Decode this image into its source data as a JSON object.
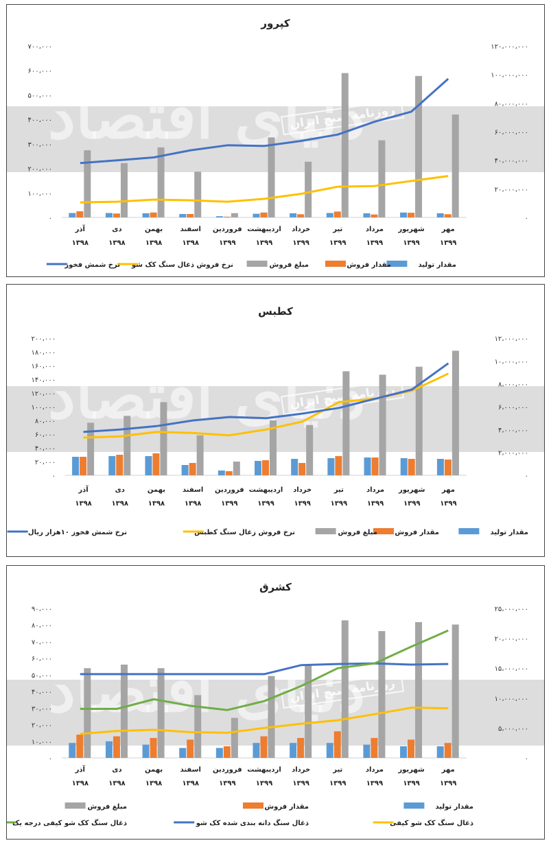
{
  "colors": {
    "production": "#5b9bd5",
    "sales_qty": "#ed7d31",
    "sales_amount": "#a5a5a5",
    "coal_price": "#ffc000",
    "ingot_price": "#4472c4",
    "grade1": "#70ad47"
  },
  "watermark": {
    "text": "روزنامه صبح ایران",
    "logo": "دنیای اقتصاد"
  },
  "chart_data": [
    {
      "type": "bar",
      "title": "کپرور",
      "categories": [
        "آذر ۱۳۹۸",
        "دی ۱۳۹۸",
        "بهمن ۱۳۹۸",
        "اسفند ۱۳۹۸",
        "فروردین ۱۳۹۹",
        "اردیبهشت ۱۳۹۹",
        "خرداد ۱۳۹۹",
        "تیر ۱۳۹۹",
        "مرداد ۱۳۹۹",
        "شهریور ۱۳۹۹",
        "مهر ۱۳۹۹"
      ],
      "y_left": {
        "ticks": [
          "۰",
          "۱۰۰،۰۰۰",
          "۲۰۰،۰۰۰",
          "۳۰۰،۰۰۰",
          "۴۰۰،۰۰۰",
          "۵۰۰،۰۰۰",
          "۶۰۰،۰۰۰",
          "۷۰۰،۰۰۰"
        ],
        "range": [
          0,
          700000
        ]
      },
      "y_right": {
        "ticks": [
          "۰",
          "۲۰،۰۰۰،۰۰۰",
          "۴۰،۰۰۰،۰۰۰",
          "۶۰،۰۰۰،۰۰۰",
          "۸۰،۰۰۰،۰۰۰",
          "۱۰۰،۰۰۰،۰۰۰",
          "۱۲۰،۰۰۰،۰۰۰"
        ],
        "range": [
          0,
          120000000
        ]
      },
      "series": [
        {
          "name": "مقدار تولید",
          "axis": "left",
          "kind": "bar",
          "color": "#5b9bd5",
          "values": [
            18000,
            18000,
            17000,
            14000,
            5000,
            15000,
            17000,
            18000,
            17000,
            20000,
            17000
          ]
        },
        {
          "name": "مقدار فروش",
          "axis": "left",
          "kind": "bar",
          "color": "#ed7d31",
          "values": [
            25000,
            16000,
            20000,
            14000,
            3000,
            20000,
            13000,
            24000,
            12000,
            19000,
            13000
          ]
        },
        {
          "name": "مبلغ فروش",
          "axis": "right",
          "kind": "bar",
          "color": "#a5a5a5",
          "values": [
            47000000,
            38000000,
            49000000,
            32000000,
            3000000,
            56000000,
            39000000,
            101000000,
            54000000,
            99000000,
            72000000
          ]
        },
        {
          "name": "نرخ فروش ذغال سنگ کک شو",
          "axis": "right",
          "kind": "line",
          "color": "#ffc000",
          "values": [
            10500000,
            11000000,
            12500000,
            12000000,
            11000000,
            13000000,
            16500000,
            21500000,
            22000000,
            25500000,
            29000000
          ]
        },
        {
          "name": "نرخ شمش فخوز",
          "axis": "right",
          "kind": "line",
          "color": "#4472c4",
          "values": [
            38000000,
            40000000,
            42000000,
            47000000,
            50500000,
            50000000,
            53500000,
            58000000,
            67000000,
            74000000,
            97000000
          ]
        }
      ]
    },
    {
      "type": "bar",
      "title": "کطبس",
      "categories": [
        "آذر ۱۳۹۸",
        "دی ۱۳۹۸",
        "بهمن ۱۳۹۸",
        "اسفند ۱۳۹۸",
        "فروردین ۱۳۹۹",
        "اردیبهشت ۱۳۹۹",
        "خرداد ۱۳۹۹",
        "تیر ۱۳۹۹",
        "مرداد ۱۳۹۹",
        "شهریور ۱۳۹۹",
        "مهر ۱۳۹۹"
      ],
      "y_left": {
        "ticks": [
          "۰",
          "۲۰،۰۰۰",
          "۴۰،۰۰۰",
          "۶۰،۰۰۰",
          "۸۰،۰۰۰",
          "۱۰۰،۰۰۰",
          "۱۲۰،۰۰۰",
          "۱۴۰،۰۰۰",
          "۱۶۰،۰۰۰",
          "۱۸۰،۰۰۰",
          "۲۰۰،۰۰۰"
        ],
        "range": [
          0,
          200000
        ]
      },
      "y_right": {
        "ticks": [
          "۰",
          "۲،۰۰۰،۰۰۰",
          "۴،۰۰۰،۰۰۰",
          "۶،۰۰۰،۰۰۰",
          "۸،۰۰۰،۰۰۰",
          "۱۰،۰۰۰،۰۰۰",
          "۱۲،۰۰۰،۰۰۰"
        ],
        "range": [
          0,
          12000000
        ]
      },
      "series": [
        {
          "name": "مقدار تولید",
          "axis": "left",
          "kind": "bar",
          "color": "#5b9bd5",
          "values": [
            27000,
            28000,
            28000,
            15000,
            7000,
            21000,
            24000,
            25000,
            26000,
            25000,
            24000
          ]
        },
        {
          "name": "مقدار فروش",
          "axis": "left",
          "kind": "bar",
          "color": "#ed7d31",
          "values": [
            27000,
            30000,
            32000,
            18000,
            6000,
            22000,
            18000,
            28000,
            26000,
            24000,
            23000
          ]
        },
        {
          "name": "مبلغ فروش",
          "axis": "right",
          "kind": "bar",
          "color": "#a5a5a5",
          "values": [
            4600000,
            5200000,
            6400000,
            3500000,
            1200000,
            4800000,
            4400000,
            9100000,
            8800000,
            9500000,
            10900000
          ]
        },
        {
          "name": "نرخ فروش زغال سنگ کطبس",
          "axis": "right",
          "kind": "line",
          "color": "#ffc000",
          "values": [
            3300000,
            3400000,
            3800000,
            3700000,
            3500000,
            4000000,
            4700000,
            6400000,
            6700000,
            7400000,
            8900000
          ]
        },
        {
          "name": "نرخ شمش فخوز ۱۰هزار ریال",
          "axis": "right",
          "kind": "line",
          "color": "#4472c4",
          "values": [
            3800000,
            4000000,
            4300000,
            4800000,
            5100000,
            5000000,
            5400000,
            5900000,
            6700000,
            7500000,
            9800000
          ]
        }
      ]
    },
    {
      "type": "bar",
      "title": "کشرق",
      "categories": [
        "آذر ۱۳۹۸",
        "دی ۱۳۹۸",
        "بهمن ۱۳۹۸",
        "اسفند ۱۳۹۸",
        "فروردین ۱۳۹۹",
        "اردیبهشت ۱۳۹۹",
        "خرداد ۱۳۹۹",
        "تیر ۱۳۹۹",
        "مرداد ۱۳۹۹",
        "شهریور ۱۳۹۹",
        "مهر ۱۳۹۹"
      ],
      "y_left": {
        "ticks": [
          "۰",
          "۱۰،۰۰۰",
          "۲۰،۰۰۰",
          "۳۰،۰۰۰",
          "۴۰،۰۰۰",
          "۵۰،۰۰۰",
          "۶۰،۰۰۰",
          "۷۰،۰۰۰",
          "۸۰،۰۰۰",
          "۹۰،۰۰۰"
        ],
        "range": [
          0,
          90000
        ]
      },
      "y_right": {
        "ticks": [
          "۰",
          "۵،۰۰۰،۰۰۰",
          "۱۰،۰۰۰،۰۰۰",
          "۱۵،۰۰۰،۰۰۰",
          "۲۰،۰۰۰،۰۰۰",
          "۲۵،۰۰۰،۰۰۰"
        ],
        "range": [
          0,
          25000000
        ]
      },
      "series": [
        {
          "name": "مقدار تولید",
          "axis": "left",
          "kind": "bar",
          "color": "#5b9bd5",
          "values": [
            9000,
            10000,
            8000,
            6000,
            6000,
            9000,
            9000,
            9000,
            8000,
            7000,
            7000
          ]
        },
        {
          "name": "مقدار فروش",
          "axis": "left",
          "kind": "bar",
          "color": "#ed7d31",
          "values": [
            14000,
            13000,
            12000,
            11000,
            7000,
            13000,
            12000,
            16000,
            12000,
            11000,
            9000
          ]
        },
        {
          "name": "مبلغ فروش",
          "axis": "right",
          "kind": "bar",
          "color": "#a5a5a5",
          "values": [
            15000000,
            15600000,
            15000000,
            10500000,
            6700000,
            13700000,
            15500000,
            23000000,
            21200000,
            22700000,
            22300000
          ]
        },
        {
          "name": "ذغال سنگ کک شو کیفی",
          "axis": "right",
          "kind": "line",
          "color": "#ffc000",
          "values": [
            4000000,
            4500000,
            4700000,
            4300000,
            4200000,
            5000000,
            5700000,
            6300000,
            7300000,
            8400000,
            8300000
          ]
        },
        {
          "name": "ذغال سنگ دانه بندی شده کک شو",
          "axis": "right",
          "kind": "line",
          "color": "#4472c4",
          "values": [
            14000000,
            14000000,
            14000000,
            14000000,
            14000000,
            14000000,
            15500000,
            15700000,
            15800000,
            15600000,
            15700000
          ]
        },
        {
          "name": "ذغال سنگ کک شو کیفی درجه یک",
          "axis": "right",
          "kind": "line",
          "color": "#70ad47",
          "values": [
            8200000,
            8200000,
            9800000,
            8700000,
            8000000,
            9500000,
            12000000,
            15000000,
            15800000,
            18600000,
            21300000
          ]
        }
      ]
    }
  ]
}
